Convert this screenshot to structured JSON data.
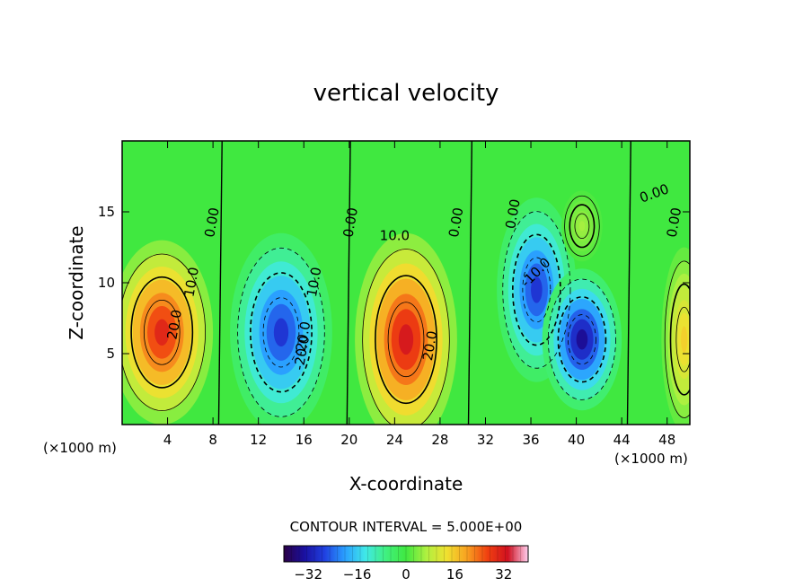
{
  "chart_data": {
    "type": "heatmap",
    "title": "vertical velocity",
    "xlabel": "X-coordinate",
    "ylabel": "Z-coordinate",
    "x_unit_label": "(×1000 m)",
    "z_unit_label": "(×1000 m)",
    "xlim": [
      0,
      50
    ],
    "ylim": [
      0,
      20
    ],
    "x_ticks": [
      4,
      8,
      12,
      16,
      20,
      24,
      28,
      32,
      36,
      40,
      44,
      48
    ],
    "y_ticks": [
      5,
      10,
      15
    ],
    "contour_interval_text": "CONTOUR INTERVAL = 5.000E+00",
    "colorbar": {
      "range": [
        -40,
        40
      ],
      "ticks": [
        -32,
        -16,
        0,
        16,
        32
      ],
      "colors": [
        "#2a0045",
        "#1a10a0",
        "#2040e0",
        "#2aa0ff",
        "#40e8e8",
        "#40f080",
        "#40e840",
        "#b0f040",
        "#f0e030",
        "#f8a020",
        "#f04010",
        "#d01020",
        "#ffd0f0"
      ]
    },
    "cells": [
      {
        "x": 3.5,
        "z": 6.5,
        "peak": 30
      },
      {
        "x": 14,
        "z": 6.5,
        "peak": -28
      },
      {
        "x": 25,
        "z": 6,
        "peak": 32
      },
      {
        "x": 36.5,
        "z": 9.5,
        "peak": -28
      },
      {
        "x": 40.5,
        "z": 6,
        "peak": -34
      },
      {
        "x": 49.5,
        "z": 6,
        "peak": 15
      },
      {
        "x": 40.5,
        "z": 14,
        "peak": 6
      }
    ],
    "contour_labels": [
      "0.00",
      "0.00",
      "0.00",
      "0.00",
      "0.00",
      "0.00",
      "10.0",
      "10.0",
      "10.0",
      "-10.0",
      "20.0",
      "-20.0",
      "-20.0",
      "20.0"
    ]
  }
}
